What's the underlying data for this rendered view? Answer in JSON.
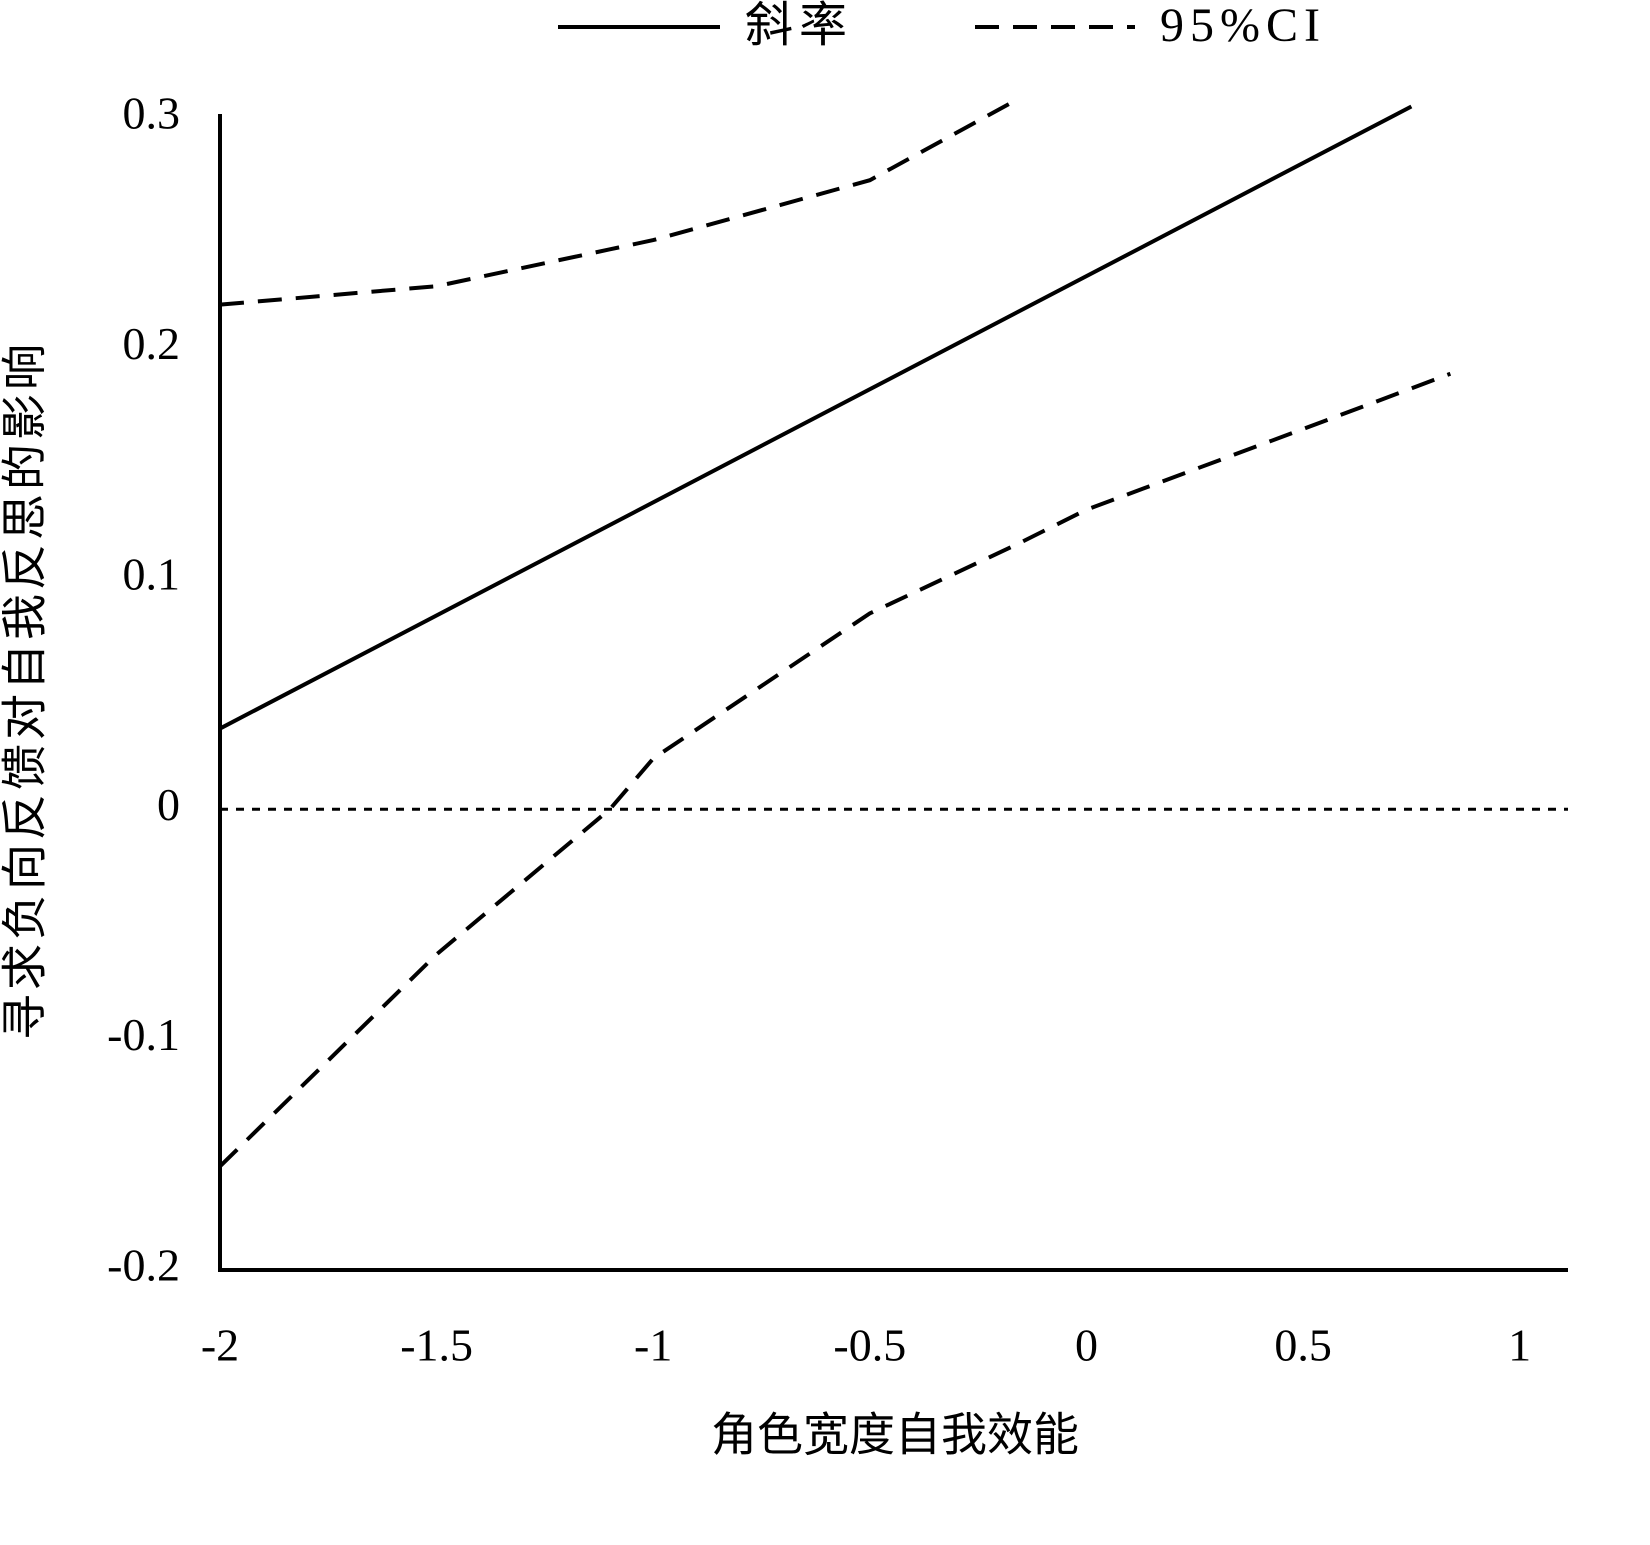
{
  "chart_data": {
    "type": "line",
    "x_label": "角色宽度自我效能",
    "y_label": "寻求负向反馈对自我反思的影响",
    "xlim": [
      -2,
      1.1
    ],
    "ylim": [
      -0.2,
      0.3
    ],
    "xticks": [
      -2,
      -1.5,
      -1,
      -0.5,
      0,
      0.5,
      1
    ],
    "yticks": [
      -0.2,
      -0.1,
      0,
      0.1,
      0.2,
      0.3
    ],
    "reference_line": {
      "y": 0,
      "style": "dotted"
    },
    "series": [
      {
        "name": "斜率",
        "color": "#000000",
        "style": "solid",
        "x": [
          -2,
          0.75
        ],
        "values": [
          0.035,
          0.305
        ]
      },
      {
        "name": "95%CI",
        "color": "#000000",
        "style": "dashed",
        "x": [
          -2,
          -1.5,
          -1.1,
          -1,
          -0.5,
          -0.16,
          0,
          0.5,
          0.84
        ],
        "values": [
          0.219,
          0.227,
          0.243,
          0.247,
          0.273,
          0.308,
          null,
          null,
          null
        ],
        "lower": [
          -0.155,
          -0.063,
          0,
          0.022,
          0.085,
          0.115,
          0.13,
          0.165,
          0.189
        ]
      }
    ]
  }
}
